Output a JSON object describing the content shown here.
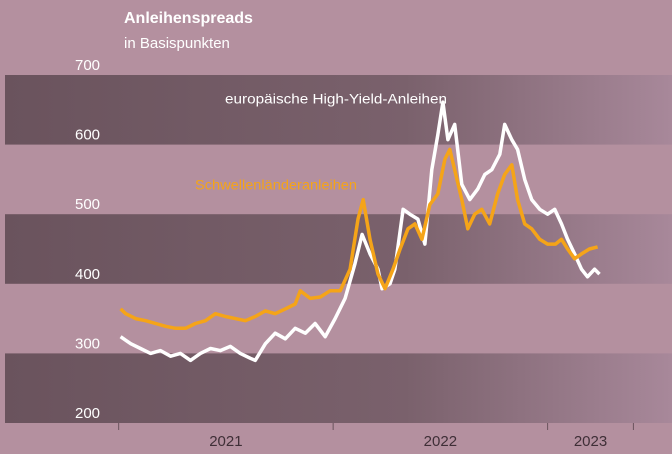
{
  "chart_data": {
    "type": "line",
    "title": "Anleihenspreads",
    "subtitle": "in Basispunkten",
    "xlim": [
      2020.47,
      2023.58
    ],
    "xticks": [
      2021,
      2022,
      2023,
      2023.4
    ],
    "xlabels": [
      {
        "value": 2021.5,
        "label": "2021"
      },
      {
        "value": 2022.5,
        "label": "2022"
      },
      {
        "value": 2023.2,
        "label": "2023"
      }
    ],
    "ylim": [
      200,
      700
    ],
    "yticks": [
      200,
      300,
      400,
      500,
      600,
      700
    ],
    "bands": true,
    "series": [
      {
        "name": "europäische High-Yield-Anleihen",
        "color": "#ffffff",
        "x": [
          2021.009,
          2021.056,
          2021.102,
          2021.149,
          2021.195,
          2021.242,
          2021.288,
          2021.335,
          2021.381,
          2021.428,
          2021.474,
          2021.521,
          2021.567,
          2021.614,
          2021.637,
          2021.684,
          2021.73,
          2021.777,
          2021.823,
          2021.87,
          2021.916,
          2021.963,
          2022.009,
          2022.056,
          2022.102,
          2022.135,
          2022.172,
          2022.209,
          2022.228,
          2022.265,
          2022.288,
          2022.326,
          2022.358,
          2022.395,
          2022.428,
          2022.46,
          2022.488,
          2022.512,
          2022.535,
          2022.567,
          2022.6,
          2022.637,
          2022.674,
          2022.707,
          2022.74,
          2022.777,
          2022.8,
          2022.833,
          2022.86,
          2022.893,
          2022.926,
          2022.963,
          2023.0,
          2023.033,
          2023.065,
          2023.093,
          2023.126,
          2023.158,
          2023.186,
          2023.219,
          2023.242
        ],
        "values": [
          324,
          314,
          307,
          300,
          304,
          296,
          300,
          290,
          300,
          307,
          304,
          310,
          300,
          293,
          290,
          314,
          329,
          321,
          336,
          329,
          343,
          324,
          350,
          379,
          429,
          471,
          443,
          421,
          393,
          400,
          421,
          507,
          500,
          493,
          457,
          564,
          614,
          661,
          607,
          629,
          543,
          521,
          536,
          557,
          564,
          586,
          629,
          607,
          593,
          550,
          521,
          507,
          500,
          507,
          486,
          464,
          443,
          421,
          410,
          421,
          414
        ]
      },
      {
        "name": "Schwellenländeranleihen",
        "color": "#f5a418",
        "x": [
          2021.009,
          2021.033,
          2021.079,
          2021.126,
          2021.172,
          2021.219,
          2021.265,
          2021.312,
          2021.358,
          2021.405,
          2021.451,
          2021.498,
          2021.544,
          2021.591,
          2021.637,
          2021.684,
          2021.73,
          2021.777,
          2021.823,
          2021.847,
          2021.893,
          2021.94,
          2021.986,
          2022.033,
          2022.079,
          2022.116,
          2022.14,
          2022.172,
          2022.209,
          2022.242,
          2022.279,
          2022.312,
          2022.349,
          2022.381,
          2022.414,
          2022.451,
          2022.488,
          2022.521,
          2022.544,
          2022.572,
          2022.6,
          2022.628,
          2022.66,
          2022.693,
          2022.73,
          2022.767,
          2022.8,
          2022.833,
          2022.86,
          2022.893,
          2022.926,
          2022.963,
          2023.0,
          2023.037,
          2023.065,
          2023.093,
          2023.126,
          2023.158,
          2023.195,
          2023.233
        ],
        "values": [
          364,
          357,
          350,
          347,
          343,
          339,
          336,
          336,
          343,
          347,
          357,
          353,
          350,
          347,
          353,
          361,
          357,
          364,
          371,
          390,
          379,
          381,
          390,
          390,
          421,
          493,
          521,
          464,
          414,
          393,
          421,
          450,
          479,
          486,
          464,
          514,
          529,
          579,
          593,
          557,
          521,
          479,
          500,
          507,
          486,
          529,
          557,
          571,
          521,
          486,
          479,
          464,
          457,
          457,
          464,
          450,
          436,
          443,
          450,
          453
        ]
      }
    ]
  }
}
